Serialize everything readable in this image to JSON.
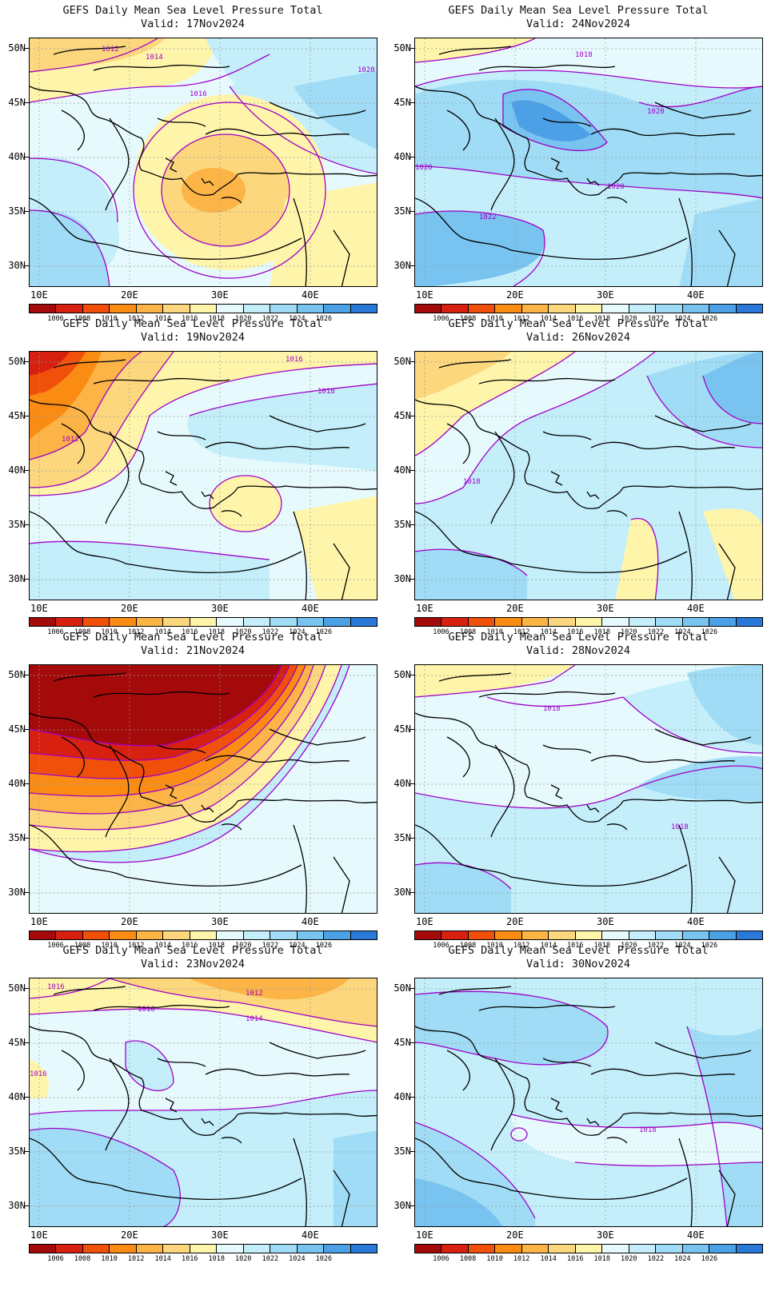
{
  "panels": [
    {
      "title": "GEFS Daily Mean Sea Level Pressure Total",
      "valid": "Valid: 17Nov2024",
      "contour_labels": [
        "1012",
        "1014",
        "1016",
        "1020"
      ]
    },
    {
      "title": "GEFS Daily Mean Sea Level Pressure Total",
      "valid": "Valid: 24Nov2024",
      "contour_labels": [
        "1018",
        "1020",
        "1020",
        "1020",
        "1022"
      ]
    },
    {
      "title": "GEFS Daily Mean Sea Level Pressure Total",
      "valid": "Valid: 19Nov2024",
      "contour_labels": [
        "1016",
        "1018",
        "1012"
      ]
    },
    {
      "title": "GEFS Daily Mean Sea Level Pressure Total",
      "valid": "Valid: 26Nov2024",
      "contour_labels": [
        "1018"
      ]
    },
    {
      "title": "GEFS Daily Mean Sea Level Pressure Total",
      "valid": "Valid: 21Nov2024",
      "contour_labels": []
    },
    {
      "title": "GEFS Daily Mean Sea Level Pressure Total",
      "valid": "Valid: 28Nov2024",
      "contour_labels": [
        "1018",
        "1018"
      ]
    },
    {
      "title": "GEFS Daily Mean Sea Level Pressure Total",
      "valid": "Valid: 23Nov2024",
      "contour_labels": [
        "1016",
        "1016",
        "1012",
        "1014",
        "1016"
      ]
    },
    {
      "title": "GEFS Daily Mean Sea Level Pressure Total",
      "valid": "Valid: 30Nov2024",
      "contour_labels": [
        "1018"
      ]
    }
  ],
  "axes": {
    "lat_labels": [
      "50N",
      "45N",
      "40N",
      "35N",
      "30N"
    ],
    "lon_labels": [
      "10E",
      "20E",
      "30E",
      "40E"
    ]
  },
  "colorbar": {
    "labels": [
      "1006",
      "1008",
      "1010",
      "1012",
      "1014",
      "1016",
      "1018",
      "1020",
      "1022",
      "1024",
      "1026"
    ],
    "colors": [
      "#a50a0a",
      "#d72010",
      "#f0500a",
      "#fa8c14",
      "#fcb446",
      "#fcd77d",
      "#fff5aa",
      "#e6fafe",
      "#c3eefa",
      "#a0dcf5",
      "#78c3f0",
      "#4ba0e6",
      "#2a78d7"
    ]
  },
  "legend_colors": {
    "contour": "#a000c8",
    "land_border": "#000000"
  }
}
